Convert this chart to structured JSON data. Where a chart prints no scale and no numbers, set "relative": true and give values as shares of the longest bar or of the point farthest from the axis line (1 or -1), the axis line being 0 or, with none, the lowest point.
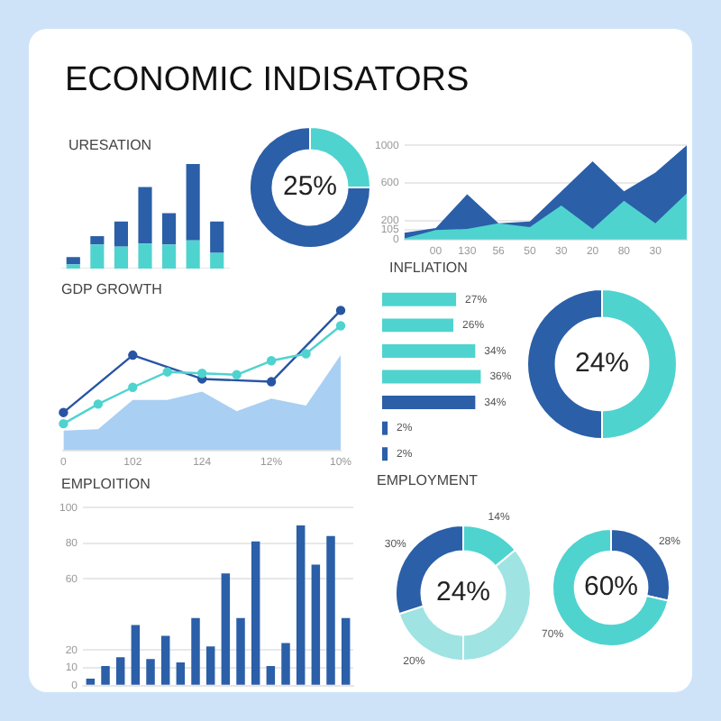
{
  "chart_data": [
    {
      "type": "other",
      "title": "ECONOMIC INDISATORS"
    },
    {
      "type": "bar",
      "title": "URESATION",
      "relative": true,
      "stacked": true,
      "tick_labels": false,
      "categories": [
        null,
        null,
        null,
        null,
        null,
        null,
        null
      ],
      "series": [
        {
          "color": "#4fd3cf",
          "values": [
            0.04,
            0.23,
            0.21,
            0.24,
            0.23,
            0.27,
            0.15
          ]
        },
        {
          "color": "#2b5fa8",
          "values": [
            0.07,
            0.08,
            0.24,
            0.54,
            0.3,
            0.73,
            0.3
          ]
        }
      ]
    },
    {
      "type": "donut",
      "categories": [
        null,
        null
      ],
      "values": [
        25,
        75
      ],
      "colors": [
        "#4fd3cf",
        "#2b5fa8"
      ],
      "annotations": [
        "25%"
      ]
    },
    {
      "type": "area",
      "categories": [
        null,
        "00",
        "130",
        "56",
        "50",
        "30",
        "20",
        "80",
        "30",
        null
      ],
      "ylim": [
        0,
        1000
      ],
      "yticks": [
        0,
        105,
        200,
        600,
        1000
      ],
      "grid": "y",
      "series": [
        {
          "color": "#2b5fa8",
          "values": [
            70,
            120,
            480,
            170,
            190,
            null,
            830,
            510,
            710,
            1000
          ]
        },
        {
          "color": "#4fd3cf",
          "values": [
            10,
            100,
            110,
            170,
            130,
            360,
            110,
            410,
            170,
            490
          ]
        }
      ]
    },
    {
      "type": "line",
      "title": "GDP GROWTH",
      "relative": true,
      "tick_labels": "x",
      "categories": [
        "0",
        null,
        "102",
        null,
        "124",
        null,
        "12%",
        null,
        "10%"
      ],
      "series": [
        {
          "type": "area",
          "color": "#a9cff3",
          "values": [
            0.14,
            0.15,
            0.36,
            0.36,
            0.42,
            0.28,
            0.37,
            0.32,
            0.68
          ]
        },
        {
          "type": "line",
          "marker": "circle",
          "color": "#2855a3",
          "values": [
            0.27,
            null,
            0.68,
            null,
            0.51,
            null,
            0.49,
            null,
            1.0
          ]
        },
        {
          "type": "line",
          "marker": "circle",
          "color": "#4fd3cf",
          "values": [
            0.19,
            0.33,
            0.45,
            0.56,
            0.55,
            0.54,
            0.64,
            0.69,
            0.89
          ]
        }
      ]
    },
    {
      "type": "bar",
      "title": "INFLIATION",
      "orientation": "horizontal",
      "tick_labels": false,
      "categories": [
        null,
        null,
        null,
        null,
        null,
        null,
        null
      ],
      "values": [
        27,
        26,
        34,
        36,
        34,
        2,
        2
      ],
      "colors": [
        "#4fd3cf",
        "#4fd3cf",
        "#4fd3cf",
        "#4fd3cf",
        "#2b5fa8",
        "#2b5fa8",
        "#2b5fa8"
      ],
      "value_labels": [
        "27%",
        "26%",
        "34%",
        "36%",
        "34%",
        "2%",
        "2%"
      ]
    },
    {
      "type": "donut",
      "categories": [
        null,
        null
      ],
      "values": [
        50,
        50
      ],
      "colors": [
        "#4fd3cf",
        "#2b5fa8"
      ],
      "annotations": [
        "24%"
      ]
    },
    {
      "type": "bar",
      "title": "EMPLOITION",
      "grid": "y",
      "tick_labels": "y",
      "categories": [
        null,
        null,
        null,
        null,
        null,
        null,
        null,
        null,
        null,
        null,
        null,
        null,
        null,
        null,
        null,
        null,
        null,
        null
      ],
      "color": "#2b5fa8",
      "ylim": [
        0,
        100
      ],
      "yticks": [
        0,
        10,
        20,
        60,
        80,
        100
      ],
      "values": [
        4,
        11,
        16,
        34,
        15,
        28,
        13,
        38,
        22,
        63,
        38,
        81,
        11,
        24,
        90,
        68,
        84,
        38
      ]
    },
    {
      "type": "donut",
      "title": "EMPLOYMENT",
      "categories": [
        null,
        null,
        null,
        null
      ],
      "values": [
        14,
        36,
        20,
        30
      ],
      "colors": [
        "#4fd3cf",
        "#9fe3e3",
        "#9fe3e3",
        "#2b5fa8"
      ],
      "value_labels": [
        "14%",
        null,
        "20%",
        "30%"
      ],
      "annotations": [
        "24%"
      ]
    },
    {
      "type": "donut",
      "categories": [
        null,
        null
      ],
      "values": [
        28,
        70
      ],
      "colors": [
        "#2b5fa8",
        "#4fd3cf"
      ],
      "value_labels": [
        "28%",
        "70%"
      ],
      "annotations": [
        "60%"
      ]
    }
  ]
}
